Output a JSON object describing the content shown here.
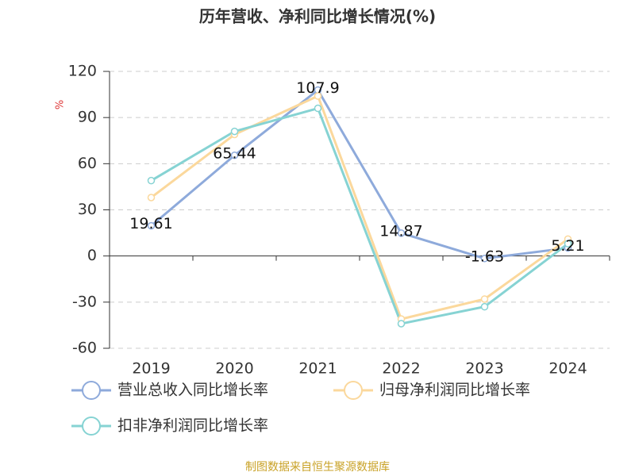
{
  "chart_data": {
    "type": "line",
    "title": "历年营收、净利同比增长情况(%)",
    "y_label": "%",
    "categories": [
      "2019",
      "2020",
      "2021",
      "2022",
      "2023",
      "2024"
    ],
    "series": [
      {
        "name": "营业总收入同比增长率",
        "color": "#8eaadb",
        "values": [
          19.61,
          65.44,
          107.9,
          14.87,
          -1.63,
          5.21
        ],
        "labels": true
      },
      {
        "name": "归母净利润同比增长率",
        "color": "#fbd89c",
        "values": [
          38,
          79,
          104,
          -41,
          -28,
          11
        ],
        "labels": false
      },
      {
        "name": "扣非净利润同比增长率",
        "color": "#86d3d3",
        "values": [
          49,
          81,
          96,
          -44,
          -33,
          8
        ],
        "labels": false
      }
    ],
    "ylim": [
      -60,
      120
    ],
    "yticks": [
      -60,
      -30,
      0,
      30,
      60,
      90,
      120
    ],
    "grid": true,
    "source": "制图数据来自恒生聚源数据库"
  }
}
